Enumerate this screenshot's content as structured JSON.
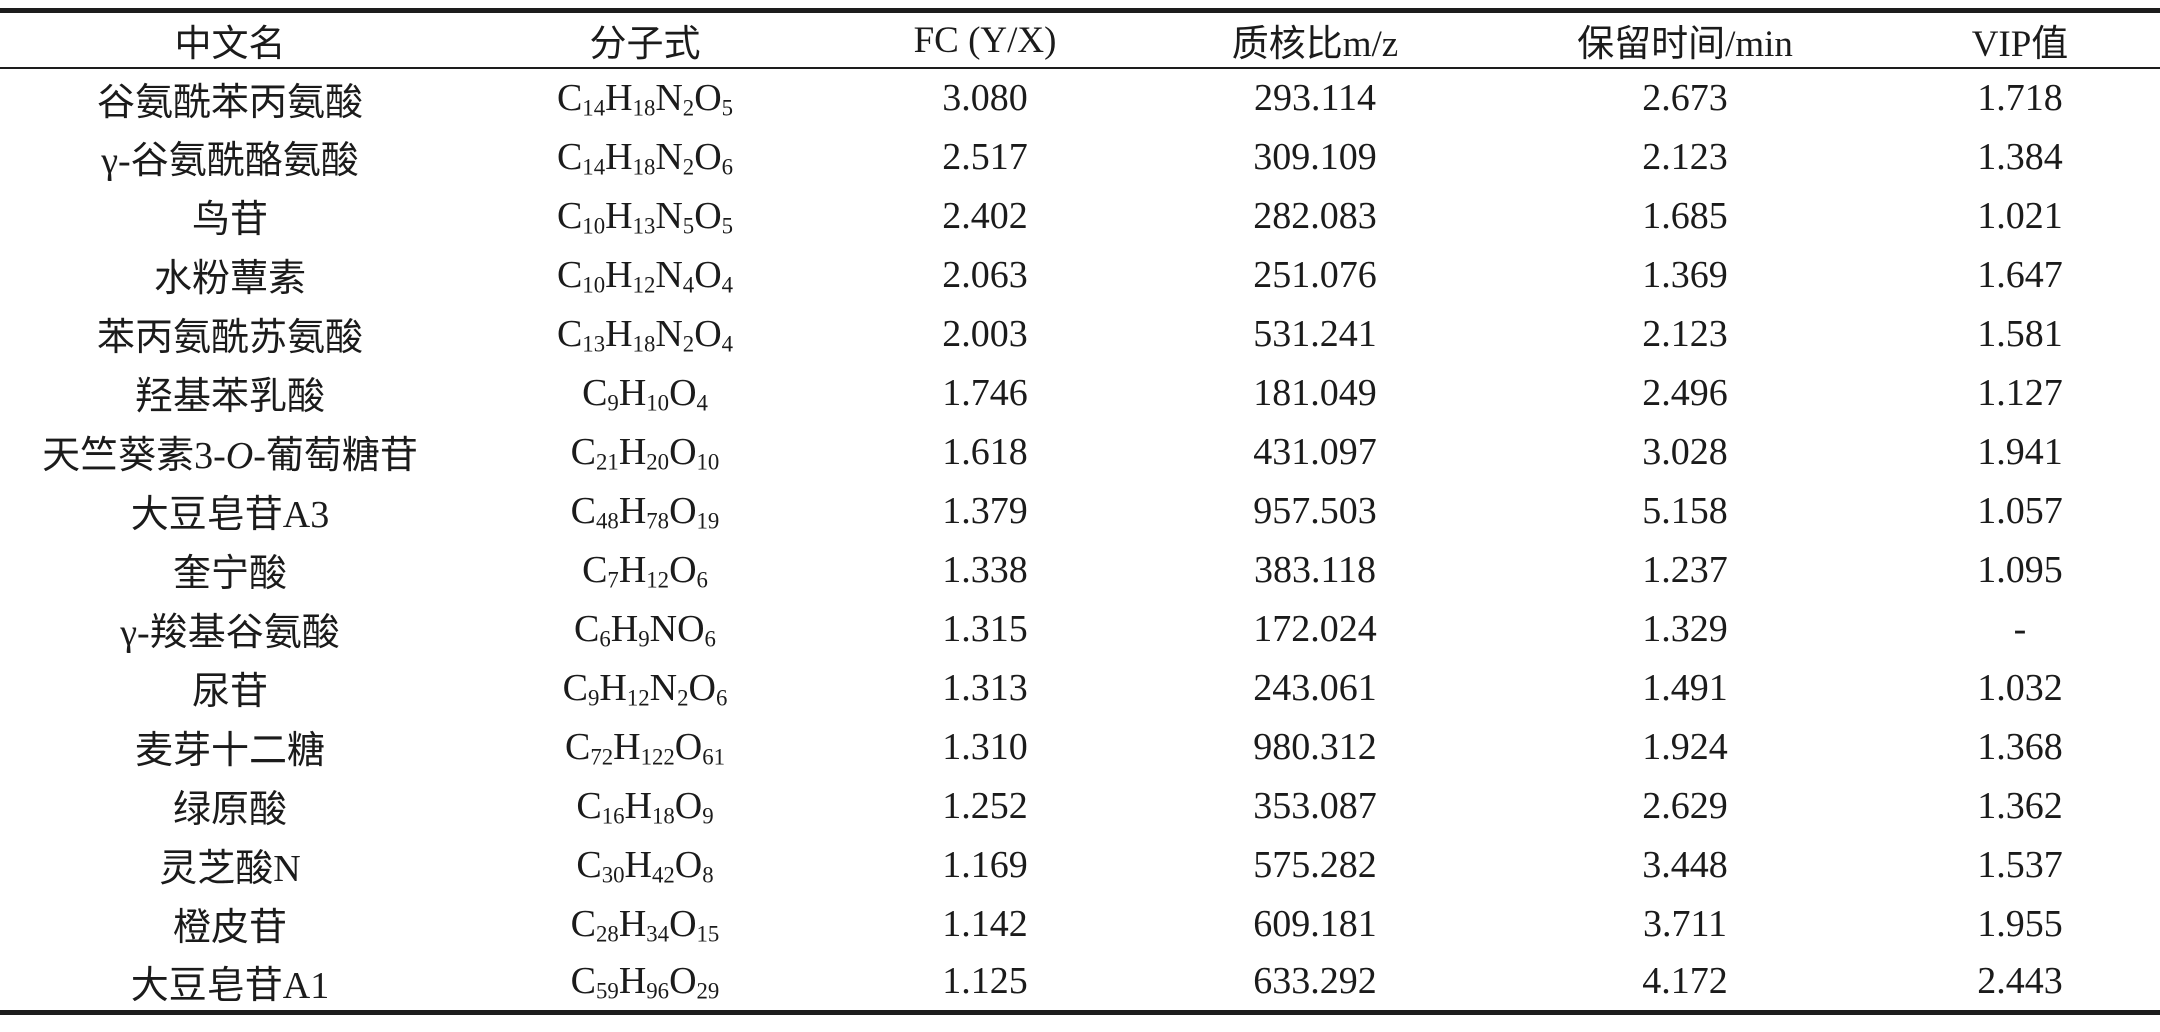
{
  "table": {
    "columns": [
      {
        "key": "name",
        "label": "中文名"
      },
      {
        "key": "formula",
        "label": "分子式"
      },
      {
        "key": "fc",
        "label": "FC (Y/X)"
      },
      {
        "key": "mz",
        "label": "质核比m/z"
      },
      {
        "key": "rt",
        "label": "保留时间/min"
      },
      {
        "key": "vip",
        "label": "VIP值"
      }
    ],
    "rows": [
      {
        "name": "谷氨酰苯丙氨酸",
        "formula": "C14H18N2O5",
        "fc": "3.080",
        "mz": "293.114",
        "rt": "2.673",
        "vip": "1.718"
      },
      {
        "name": "γ-谷氨酰酪氨酸",
        "formula": "C14H18N2O6",
        "fc": "2.517",
        "mz": "309.109",
        "rt": "2.123",
        "vip": "1.384"
      },
      {
        "name": "鸟苷",
        "formula": "C10H13N5O5",
        "fc": "2.402",
        "mz": "282.083",
        "rt": "1.685",
        "vip": "1.021"
      },
      {
        "name": "水粉蕈素",
        "formula": "C10H12N4O4",
        "fc": "2.063",
        "mz": "251.076",
        "rt": "1.369",
        "vip": "1.647"
      },
      {
        "name": "苯丙氨酰苏氨酸",
        "formula": "C13H18N2O4",
        "fc": "2.003",
        "mz": "531.241",
        "rt": "2.123",
        "vip": "1.581"
      },
      {
        "name": "羟基苯乳酸",
        "formula": "C9H10O4",
        "fc": "1.746",
        "mz": "181.049",
        "rt": "2.496",
        "vip": "1.127"
      },
      {
        "name": "天竺葵素3-O-葡萄糖苷",
        "formula": "C21H20O10",
        "fc": "1.618",
        "mz": "431.097",
        "rt": "3.028",
        "vip": "1.941"
      },
      {
        "name": "大豆皂苷A3",
        "formula": "C48H78O19",
        "fc": "1.379",
        "mz": "957.503",
        "rt": "5.158",
        "vip": "1.057"
      },
      {
        "name": "奎宁酸",
        "formula": "C7H12O6",
        "fc": "1.338",
        "mz": "383.118",
        "rt": "1.237",
        "vip": "1.095"
      },
      {
        "name": "γ-羧基谷氨酸",
        "formula": "C6H9NO6",
        "fc": "1.315",
        "mz": "172.024",
        "rt": "1.329",
        "vip": "-"
      },
      {
        "name": "尿苷",
        "formula": "C9H12N2O6",
        "fc": "1.313",
        "mz": "243.061",
        "rt": "1.491",
        "vip": "1.032"
      },
      {
        "name": "麦芽十二糖",
        "formula": "C72H122O61",
        "fc": "1.310",
        "mz": "980.312",
        "rt": "1.924",
        "vip": "1.368"
      },
      {
        "name": "绿原酸",
        "formula": "C16H18O9",
        "fc": "1.252",
        "mz": "353.087",
        "rt": "2.629",
        "vip": "1.362"
      },
      {
        "name": "灵芝酸N",
        "formula": "C30H42O8",
        "fc": "1.169",
        "mz": "575.282",
        "rt": "3.448",
        "vip": "1.537"
      },
      {
        "name": "橙皮苷",
        "formula": "C28H34O15",
        "fc": "1.142",
        "mz": "609.181",
        "rt": "3.711",
        "vip": "1.955"
      },
      {
        "name": "大豆皂苷A1",
        "formula": "C59H96O29",
        "fc": "1.125",
        "mz": "633.292",
        "rt": "4.172",
        "vip": "2.443"
      }
    ]
  },
  "colors": {
    "text": "#1b1b1b",
    "rule": "#1d1d1d",
    "background": "#ffffff"
  }
}
